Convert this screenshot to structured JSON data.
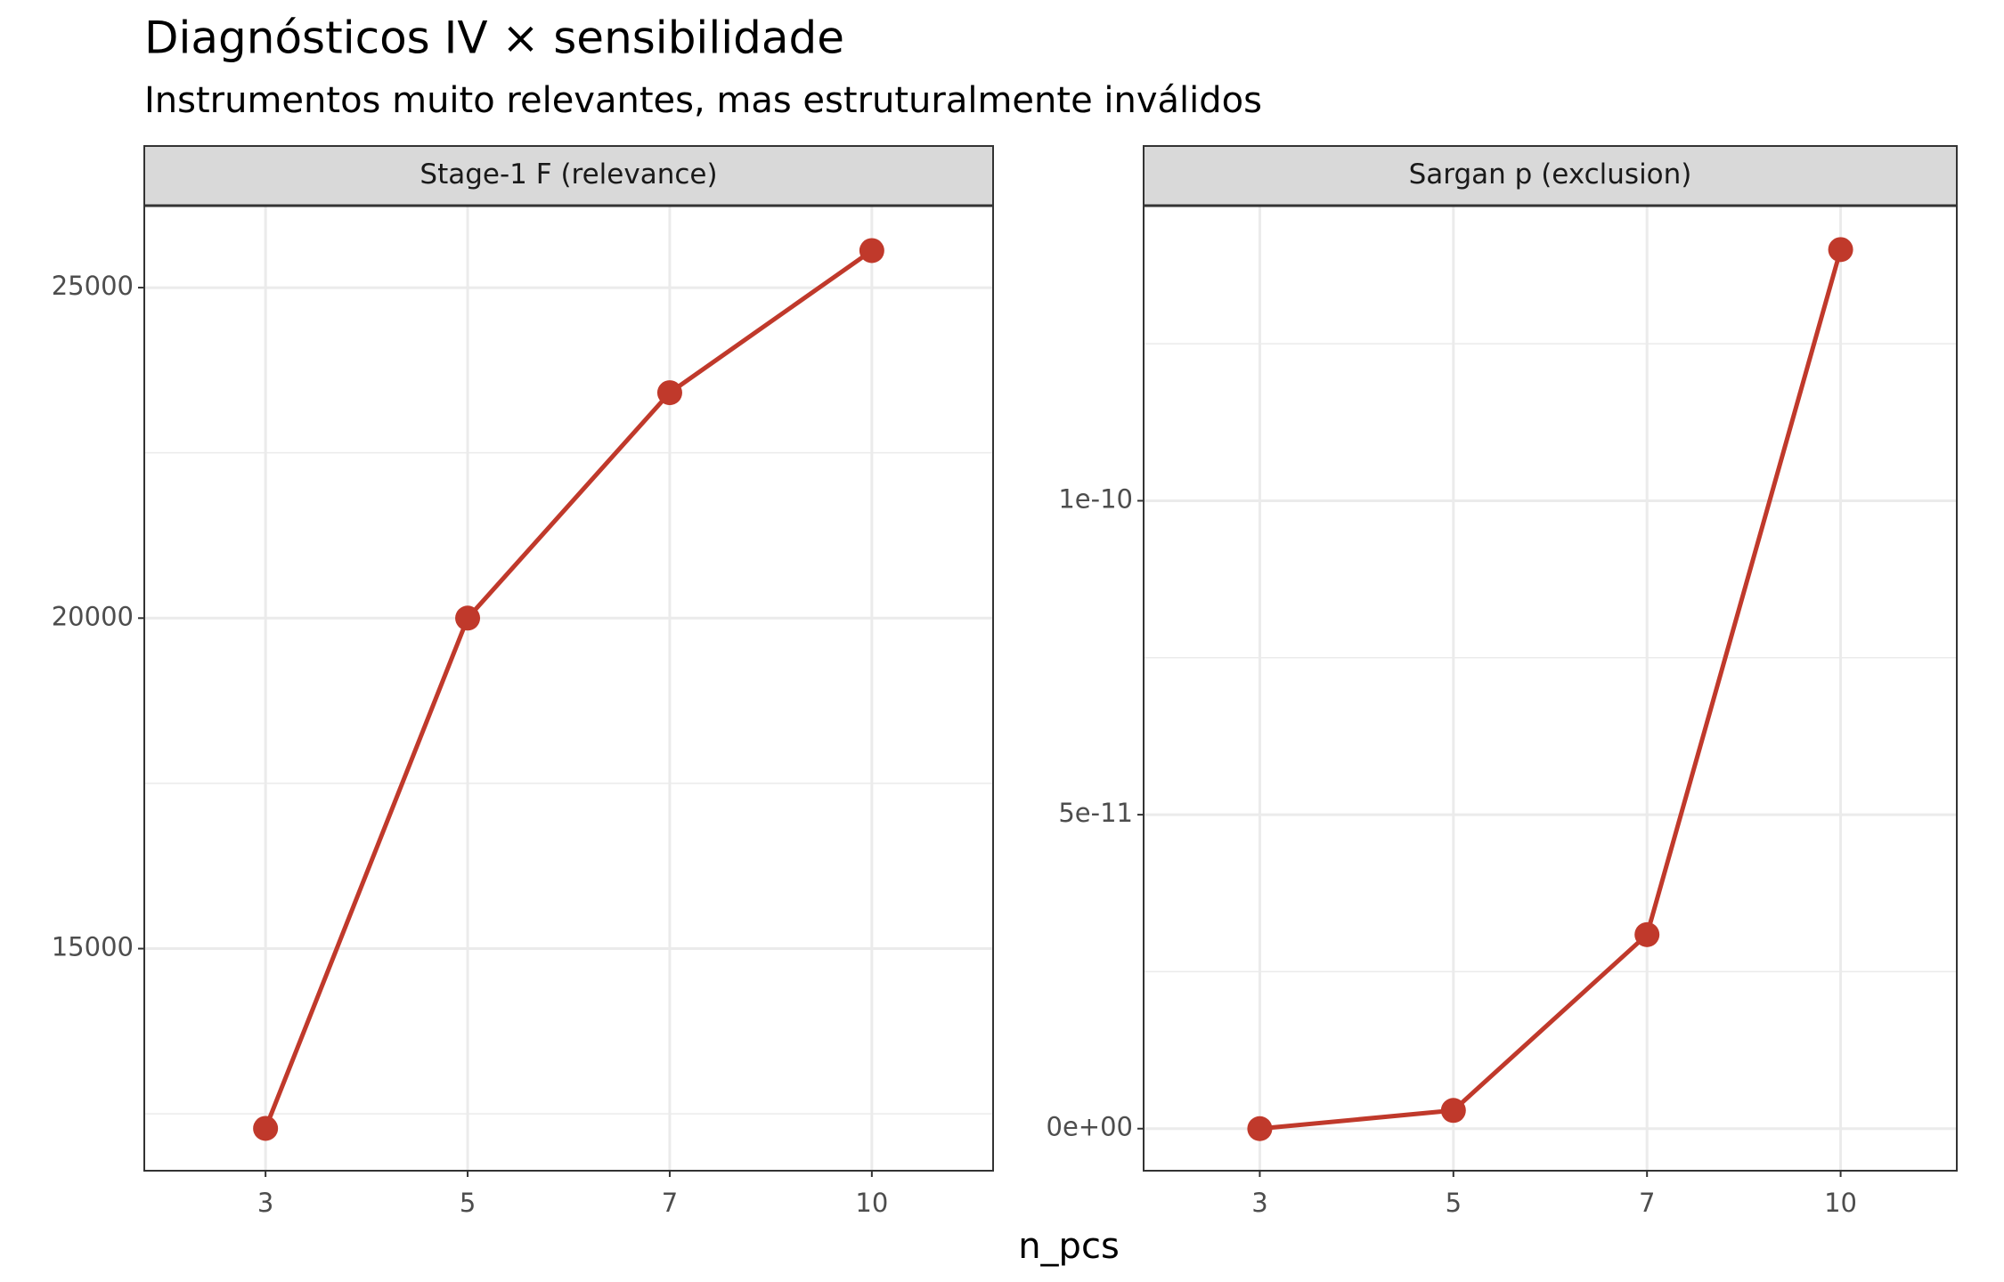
{
  "chart_data": {
    "type": "line",
    "title": "Diagnósticos IV × sensibilidade",
    "subtitle": "Instrumentos muito relevantes, mas estruturalmente inválidos",
    "xlabel": "n_pcs",
    "categories": [
      "3",
      "5",
      "7",
      "10"
    ],
    "color": "#c0392b",
    "grid": true,
    "facets": [
      {
        "title": "Stage-1 F (relevance)",
        "values": [
          12280,
          20000,
          23410,
          25560
        ],
        "ylim": [
          11640,
          26240
        ],
        "yticks": [
          15000,
          20000,
          25000
        ],
        "minor_yticks": [
          12500,
          17500,
          22500
        ]
      },
      {
        "title": "Sargan p (exclusion)",
        "values": [
          0,
          2.9e-12,
          3.09e-11,
          1.4e-10
        ],
        "ylim": [
          -6.7e-12,
          1.47e-10
        ],
        "yticks": [
          {
            "value": 0,
            "label": "0e+00"
          },
          {
            "value": 5e-11,
            "label": "5e-11"
          },
          {
            "value": 1e-10,
            "label": "1e-10"
          }
        ],
        "minor_yticks": [
          2.5e-11,
          7.5e-11,
          1.25e-10
        ]
      }
    ]
  }
}
